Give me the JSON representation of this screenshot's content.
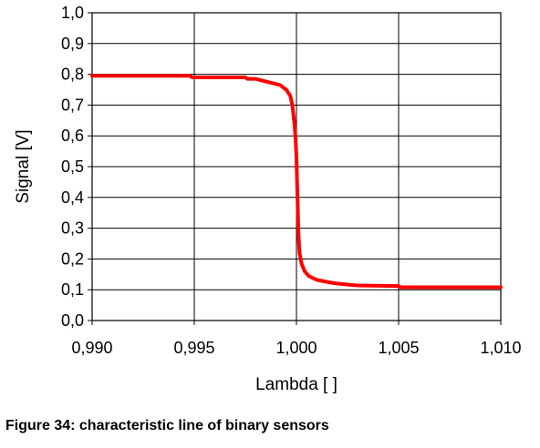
{
  "caption": "Figure 34: characteristic line of binary sensors",
  "chart_data": {
    "type": "line",
    "title": "",
    "xlabel": "Lambda [ ]",
    "ylabel": "Signal [V]",
    "xlim": [
      0.99,
      1.01
    ],
    "ylim": [
      0.0,
      1.0
    ],
    "x_ticks": [
      "0,990",
      "0,995",
      "1,000",
      "1,005",
      "1,010"
    ],
    "y_ticks": [
      "0,0",
      "0,1",
      "0,2",
      "0,3",
      "0,4",
      "0,5",
      "0,6",
      "0,7",
      "0,8",
      "0,9",
      "1,0"
    ],
    "grid": true,
    "legend": "none",
    "line_color": "#ff0000",
    "series": [
      {
        "x": [
          0.99,
          0.9948,
          0.9949,
          0.9975,
          0.9976,
          0.998,
          0.9983,
          0.9986,
          0.9989,
          0.9992,
          0.9995,
          0.9997,
          0.9998,
          0.99985,
          0.9999,
          0.99995,
          1.0,
          1.00003,
          1.00006,
          1.0001,
          1.00015,
          1.00025,
          1.0004,
          1.0006,
          1.0008,
          1.001,
          1.0013,
          1.0016,
          1.0018,
          1.002,
          1.0023,
          1.0026,
          1.003,
          1.005,
          1.0051,
          1.01
        ],
        "y": [
          0.795,
          0.795,
          0.79,
          0.79,
          0.785,
          0.785,
          0.78,
          0.775,
          0.77,
          0.765,
          0.75,
          0.73,
          0.7,
          0.67,
          0.64,
          0.6,
          0.53,
          0.45,
          0.38,
          0.28,
          0.22,
          0.185,
          0.16,
          0.145,
          0.138,
          0.132,
          0.128,
          0.124,
          0.122,
          0.12,
          0.118,
          0.116,
          0.114,
          0.112,
          0.108,
          0.108
        ]
      }
    ]
  }
}
